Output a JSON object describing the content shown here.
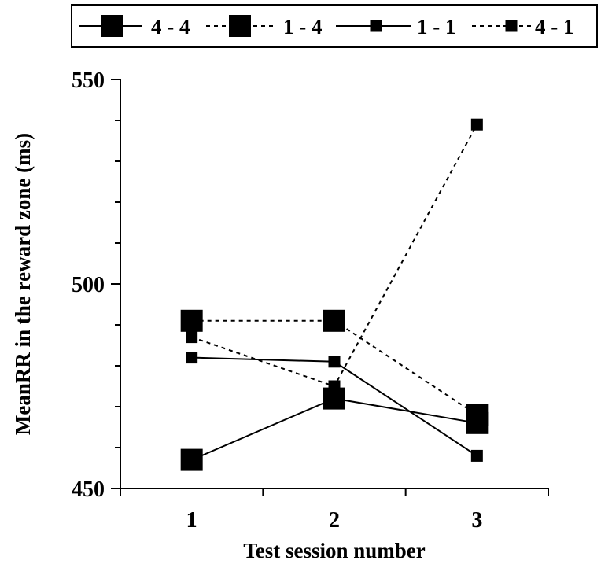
{
  "chart_data": {
    "type": "line",
    "xlabel": "Test session number",
    "ylabel": "MeanRR in the reward zone (ms)",
    "x": [
      1,
      2,
      3
    ],
    "xlim": [
      0.5,
      3.5
    ],
    "ylim": [
      450,
      550
    ],
    "yticks": [
      450,
      500,
      550
    ],
    "y_minor_step": 10,
    "grid": false,
    "legend_position": "top",
    "series": [
      {
        "name": "4 - 4",
        "values": [
          457,
          472,
          466
        ],
        "line": "solid",
        "marker": "large-square",
        "color": "#000000"
      },
      {
        "name": "1 - 4",
        "values": [
          491,
          491,
          468
        ],
        "line": "dotted",
        "marker": "large-square",
        "color": "#000000"
      },
      {
        "name": "1 - 1",
        "values": [
          482,
          481,
          458
        ],
        "line": "solid",
        "marker": "small-square",
        "color": "#000000"
      },
      {
        "name": "4 - 1",
        "values": [
          487,
          475,
          539
        ],
        "line": "dotted",
        "marker": "small-square",
        "color": "#000000"
      }
    ]
  }
}
